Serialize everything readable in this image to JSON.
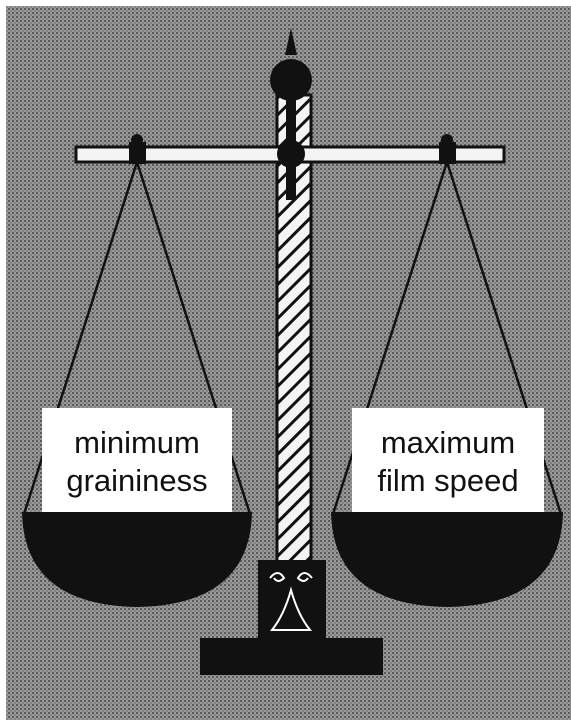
{
  "left_pan": {
    "label_lines": [
      "minimum",
      "graininess"
    ]
  },
  "right_pan": {
    "label_lines": [
      "maximum",
      "film speed"
    ]
  }
}
